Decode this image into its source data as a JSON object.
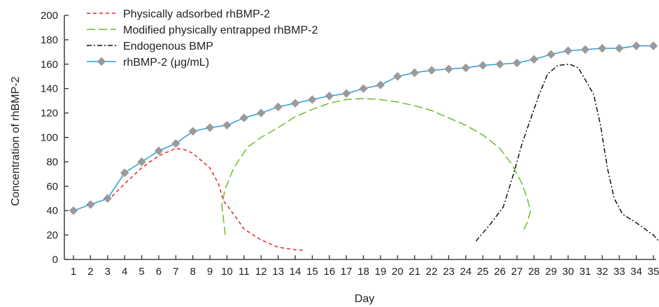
{
  "chart_data": {
    "type": "line",
    "title": "",
    "xlabel": "Day",
    "ylabel": "Concentration of rhBMP-2",
    "xlim": [
      1,
      35
    ],
    "ylim": [
      0,
      200
    ],
    "yticks": [
      0,
      20,
      40,
      60,
      80,
      100,
      120,
      140,
      160,
      180,
      200
    ],
    "xticks": [
      1,
      2,
      3,
      4,
      5,
      6,
      7,
      8,
      9,
      10,
      11,
      12,
      13,
      14,
      15,
      16,
      17,
      18,
      19,
      20,
      21,
      22,
      23,
      24,
      25,
      26,
      27,
      28,
      29,
      30,
      31,
      32,
      33,
      34,
      35
    ],
    "grid": false,
    "legend_position": "top-left",
    "series": [
      {
        "name": "Physically adsorbed rhBMP-2",
        "color": "#e3262b",
        "style": "dashed",
        "marker": "none",
        "points": [
          [
            3,
            48
          ],
          [
            4,
            62
          ],
          [
            5,
            75
          ],
          [
            6,
            85
          ],
          [
            7,
            91
          ],
          [
            7.5,
            90
          ],
          [
            8,
            87
          ],
          [
            9,
            75
          ],
          [
            9.5,
            62
          ],
          [
            9.8,
            48
          ],
          [
            10.5,
            35
          ],
          [
            11,
            25
          ],
          [
            12,
            16
          ],
          [
            13,
            10
          ],
          [
            14,
            8
          ],
          [
            14.5,
            7.5
          ]
        ]
      },
      {
        "name": "Modified physically entrapped rhBMP-2",
        "color": "#6fba2c",
        "style": "long-dashed",
        "marker": "none",
        "points": [
          [
            9.9,
            20
          ],
          [
            9.7,
            45
          ],
          [
            9.9,
            58
          ],
          [
            10.4,
            75
          ],
          [
            11.2,
            92
          ],
          [
            12,
            100
          ],
          [
            13,
            108
          ],
          [
            14,
            117
          ],
          [
            15,
            123
          ],
          [
            16,
            128
          ],
          [
            17,
            131
          ],
          [
            18,
            132
          ],
          [
            19,
            131
          ],
          [
            20,
            129
          ],
          [
            21,
            126
          ],
          [
            22,
            122
          ],
          [
            23,
            116
          ],
          [
            24,
            110
          ],
          [
            25,
            102
          ],
          [
            26,
            91
          ],
          [
            26.7,
            78
          ],
          [
            27.3,
            62
          ],
          [
            27.6,
            50
          ],
          [
            27.8,
            40
          ],
          [
            27.6,
            30
          ],
          [
            27.3,
            22
          ]
        ]
      },
      {
        "name": "Endogenous BMP",
        "color": "#111111",
        "style": "dash-dot",
        "marker": "none",
        "points": [
          [
            24.6,
            15
          ],
          [
            25.5,
            30
          ],
          [
            26.2,
            43
          ],
          [
            26.8,
            70
          ],
          [
            27.3,
            95
          ],
          [
            27.8,
            115
          ],
          [
            28.3,
            135
          ],
          [
            28.8,
            152
          ],
          [
            29.4,
            159
          ],
          [
            30.1,
            160
          ],
          [
            30.6,
            157
          ],
          [
            31.1,
            145
          ],
          [
            31.5,
            135
          ],
          [
            31.9,
            110
          ],
          [
            32.3,
            75
          ],
          [
            32.7,
            50
          ],
          [
            33.2,
            37
          ],
          [
            34,
            30
          ],
          [
            35,
            20
          ],
          [
            35.5,
            12
          ]
        ]
      },
      {
        "name": "rhBMP-2 (μg/mL)",
        "color": "#2a9fd6",
        "marker_color": "#9a9a9a",
        "style": "solid",
        "marker": "diamond",
        "x": [
          1,
          2,
          3,
          4,
          5,
          6,
          7,
          8,
          9,
          10,
          11,
          12,
          13,
          14,
          15,
          16,
          17,
          18,
          19,
          20,
          21,
          22,
          23,
          24,
          25,
          26,
          27,
          28,
          29,
          30,
          31,
          32,
          33,
          34,
          35
        ],
        "values": [
          40,
          45,
          50,
          71,
          80,
          89,
          95,
          105,
          108,
          110,
          116,
          120,
          125,
          128,
          131,
          134,
          136,
          140,
          143,
          150,
          153,
          155,
          156,
          157,
          159,
          160,
          161,
          164,
          168,
          171,
          172,
          173,
          173,
          175,
          175
        ]
      }
    ]
  }
}
